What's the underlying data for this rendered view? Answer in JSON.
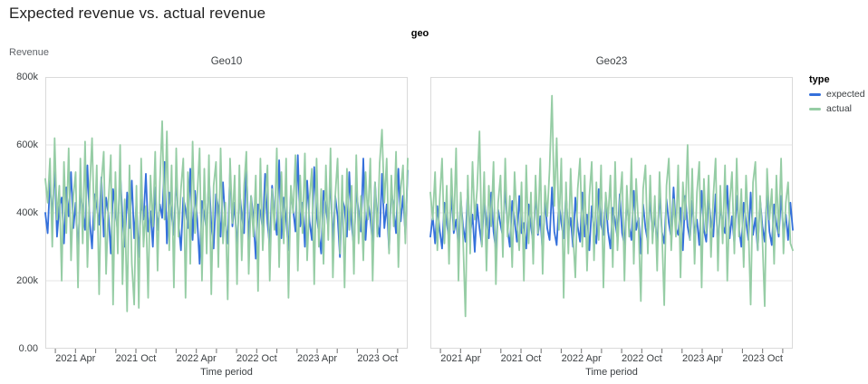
{
  "page_title": "Expected revenue vs. actual revenue",
  "facet_header": "geo",
  "axis": {
    "y_title": "Revenue",
    "x_title": "Time period"
  },
  "legend": {
    "title": "type",
    "entries": [
      {
        "label": "expected",
        "color": "#3470db"
      },
      {
        "label": "actual",
        "color": "#96cda5"
      }
    ]
  },
  "colors": {
    "expected_line": "#3470db",
    "actual_line": "#96cda5",
    "grid": "#e6e6e6",
    "panel_border": "#dadada",
    "tick": "#6f6f6f",
    "title_text": "#1f1f1f",
    "muted_text": "#5f6368",
    "axis_text": "#3c4043"
  },
  "chart_data": {
    "type": "line",
    "title": "Expected revenue vs. actual revenue",
    "facet_field": "geo",
    "xlabel": "Time period",
    "ylabel": "Revenue",
    "frequency": "weekly",
    "x_domain": [
      "2021-01",
      "2023-12"
    ],
    "x_range_months": 36,
    "x_tick_labels": [
      "2021 Apr",
      "2021 Oct",
      "2022 Apr",
      "2022 Oct",
      "2023 Apr",
      "2023 Oct"
    ],
    "x_major_tick_months": [
      3,
      9,
      15,
      21,
      27,
      33
    ],
    "x_minor_tick_months": [
      1,
      5,
      7,
      11,
      13,
      17,
      19,
      23,
      25,
      29,
      31,
      35
    ],
    "ylim_k": [
      0,
      800
    ],
    "y_tick_labels": [
      "800k",
      "600k",
      "400k",
      "200k",
      "0.00"
    ],
    "y_tick_values_k": [
      800,
      600,
      400,
      200,
      0
    ],
    "grid_values_k": [
      600,
      400,
      200
    ],
    "values_unit": "thousands of revenue (k)",
    "points_per_series": 156,
    "legend_position": "right",
    "facets": [
      {
        "label": "Geo10",
        "series": [
          {
            "name": "expected",
            "color": "#3470db",
            "values_k": [
              400,
              340,
              495,
              380,
              545,
              330,
              420,
              445,
              310,
              475,
              390,
              520,
              355,
              430,
              285,
              465,
              405,
              350,
              540,
              375,
              295,
              455,
              420,
              365,
              505,
              330,
              445,
              395,
              280,
              470,
              415,
              340,
              525,
              385,
              300,
              460,
              355,
              495,
              325,
              430,
              270,
              440,
              380,
              515,
              345,
              405,
              300,
              475,
              350,
              425,
              385,
              550,
              310,
              460,
              395,
              335,
              505,
              370,
              290,
              445,
              410,
              355,
              530,
              320,
              465,
              380,
              250,
              435,
              400,
              345,
              510,
              365,
              295,
              455,
              415,
              330,
              490,
              375,
              310,
              520,
              360,
              430,
              285,
              470,
              395,
              340,
              545,
              315,
              450,
              385,
              265,
              425,
              405,
              350,
              515,
              370,
              300,
              480,
              390,
              335,
              555,
              325,
              445,
              380,
              290,
              460,
              410,
              345,
              570,
              360,
              430,
              300,
              495,
              375,
              320,
              535,
              395,
              340,
              280,
              465,
              420,
              355,
              505,
              310,
              450,
              390,
              270,
              440,
              415,
              330,
              520,
              365,
              295,
              475,
              400,
              345,
              560,
              320,
              435,
              385,
              305,
              490,
              370,
              330,
              515,
              355,
              425,
              290,
              470,
              410,
              340,
              530,
              375,
              450,
              335,
              525
            ]
          },
          {
            "name": "actual",
            "color": "#96cda5",
            "values_k": [
              500,
              430,
              560,
              300,
              620,
              380,
              480,
              200,
              550,
              340,
              590,
              260,
              450,
              520,
              180,
              560,
              310,
              610,
              240,
              470,
              620,
              350,
              540,
              160,
              490,
              580,
              220,
              430,
              570,
              130,
              520,
              280,
              600,
              190,
              440,
              110,
              540,
              250,
              130,
              480,
              120,
              560,
              300,
              420,
              150,
              510,
              360,
              580,
              230,
              490,
              670,
              380,
              640,
              290,
              540,
              180,
              590,
              330,
              470,
              560,
              150,
              520,
              250,
              610,
              340,
              450,
              590,
              200,
              530,
              280,
              570,
              160,
              480,
              550,
              240,
              590,
              310,
              430,
              145,
              560,
              370,
              510,
              190,
              540,
              260,
              480,
              580,
              220,
              450,
              330,
              510,
              170,
              560,
              290,
              430,
              540,
              200,
              470,
              350,
              590,
              240,
              520,
              310,
              560,
              150,
              480,
              400,
              570,
              230,
              510,
              340,
              575,
              260,
              440,
              530,
              190,
              560,
              300,
              470,
              250,
              540,
              320,
              590,
              210,
              450,
              560,
              280,
              510,
              180,
              530,
              350,
              480,
              220,
              570,
              310,
              450,
              260,
              520,
              380,
              560,
              200,
              490,
              330,
              545,
              645,
              430,
              560,
              280,
              510,
              360,
              580,
              240,
              470,
              540,
              310,
              560
            ]
          }
        ]
      },
      {
        "label": "Geo23",
        "series": [
          {
            "name": "expected",
            "color": "#3470db",
            "values_k": [
              330,
              390,
              310,
              420,
              350,
              295,
              430,
              370,
              320,
              455,
              340,
              380,
              300,
              440,
              360,
              315,
              470,
              335,
              395,
              285,
              425,
              355,
              305,
              445,
              375,
              325,
              460,
              345,
              290,
              410,
              365,
              330,
              480,
              350,
              300,
              435,
              380,
              315,
              450,
              340,
              370,
              295,
              425,
              360,
              310,
              465,
              335,
              390,
              280,
              440,
              355,
              320,
              475,
              345,
              305,
              430,
              370,
              325,
              455,
              340,
              385,
              300,
              445,
              360,
              315,
              460,
              330,
              395,
              290,
              420,
              350,
              310,
              470,
              365,
              335,
              440,
              345,
              295,
              415,
              375,
              325,
              455,
              340,
              305,
              435,
              360,
              320,
              465,
              350,
              385,
              280,
              425,
              355,
              315,
              450,
              330,
              395,
              300,
              460,
              345,
              310,
              440,
              370,
              325,
              475,
              355,
              335,
              415,
              290,
              450,
              360,
              320,
              435,
              340,
              380,
              305,
              465,
              350,
              315,
              445,
              370,
              330,
              455,
              295,
              420,
              365,
              340,
              480,
              325,
              390,
              310,
              450,
              355,
              300,
              430,
              375,
              320,
              460,
              335,
              385,
              290,
              440,
              360,
              315,
              465,
              345,
              305,
              425,
              370,
              330,
              450,
              340,
              395,
              320,
              430,
              350
            ]
          },
          {
            "name": "actual",
            "color": "#96cda5",
            "values_k": [
              460,
              380,
              520,
              290,
              440,
              560,
              310,
              480,
              250,
              530,
              350,
              590,
              200,
              460,
              320,
              95,
              510,
              280,
              550,
              380,
              470,
              640,
              300,
              520,
              230,
              480,
              360,
              550,
              190,
              430,
              510,
              270,
              560,
              330,
              450,
              240,
              520,
              380,
              290,
              490,
              200,
              540,
              310,
              460,
              250,
              510,
              340,
              560,
              220,
              480,
              390,
              530,
              745,
              420,
              620,
              350,
              560,
              150,
              490,
              280,
              530,
              340,
              210,
              470,
              560,
              300,
              510,
              230,
              450,
              550,
              260,
              490,
              320,
              540,
              180,
              460,
              380,
              510,
              240,
              550,
              290,
              430,
              520,
              200,
              480,
              330,
              560,
              250,
              500,
              360,
              140,
              470,
              540,
              280,
              510,
              310,
              450,
              230,
              520,
              350,
              128,
              480,
              560,
              290,
              440,
              330,
              540,
              210,
              490,
              380,
              600,
              320,
              530,
              250,
              460,
              550,
              180,
              500,
              340,
              510,
              270,
              450,
              560,
              230,
              480,
              310,
              540,
              200,
              430,
              520,
              280,
              560,
              330,
              470,
              240,
              510,
              360,
              130,
              490,
              550,
              290,
              450,
              320,
              125,
              530,
              380,
              470,
              250,
              510,
              340,
              560,
              280,
              430,
              490,
              310,
              290
            ]
          }
        ]
      }
    ]
  }
}
